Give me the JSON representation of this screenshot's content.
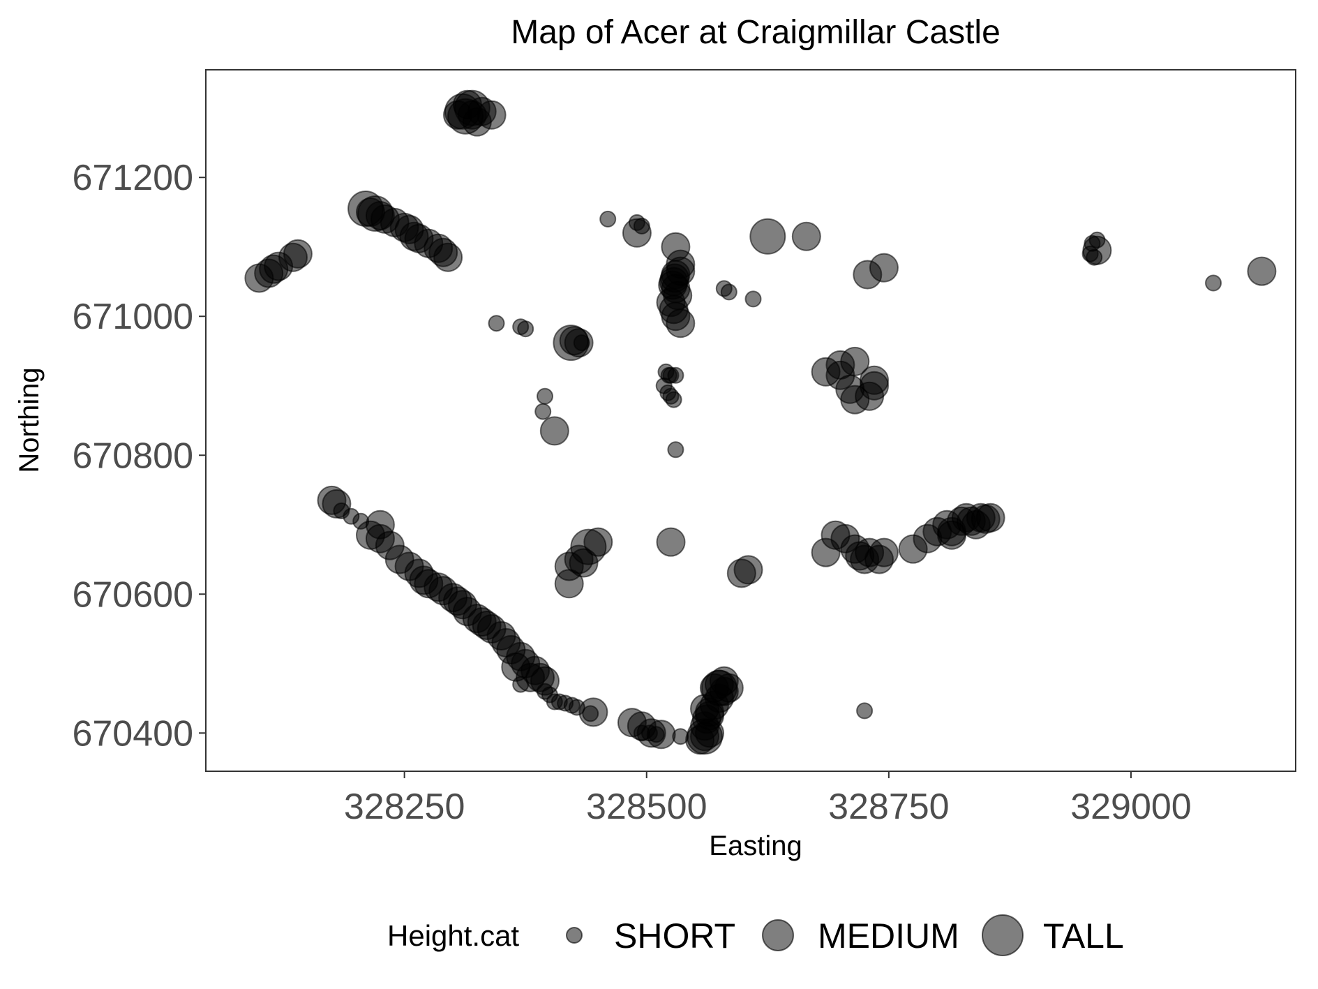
{
  "chart_data": {
    "type": "scatter",
    "title": "Map of Acer at Craigmillar Castle",
    "xlabel": "Easting",
    "ylabel": "Northing",
    "xlim": [
      328045,
      329170
    ],
    "ylim": [
      670345,
      671355
    ],
    "xticks": [
      328250,
      328500,
      328750,
      329000
    ],
    "yticks": [
      670400,
      670600,
      670800,
      671000,
      671200
    ],
    "grid": false,
    "legend": {
      "title": "Height.cat",
      "position": "bottom",
      "entries": [
        "SHORT",
        "MEDIUM",
        "TALL"
      ]
    },
    "colors": {
      "point_fill": "#000000",
      "point_opacity": 0.5,
      "panel_border": "#333333"
    },
    "sizes": {
      "SHORT": 11,
      "MEDIUM": 20,
      "TALL": 25
    },
    "series": [
      {
        "name": "SHORT",
        "points": [
          [
            328460,
            671140
          ],
          [
            328490,
            671135
          ],
          [
            328495,
            671130
          ],
          [
            328345,
            670990
          ],
          [
            328370,
            670985
          ],
          [
            328375,
            670982
          ],
          [
            328395,
            670885
          ],
          [
            328393,
            670863
          ],
          [
            328433,
            670962
          ],
          [
            328520,
            670920
          ],
          [
            328525,
            670915
          ],
          [
            328523,
            670915
          ],
          [
            328530,
            670915
          ],
          [
            328522,
            670890
          ],
          [
            328518,
            670900
          ],
          [
            328528,
            670880
          ],
          [
            328525,
            670885
          ],
          [
            328530,
            670808
          ],
          [
            328580,
            671040
          ],
          [
            328585,
            671035
          ],
          [
            328610,
            671025
          ],
          [
            328185,
            670720
          ],
          [
            328195,
            670712
          ],
          [
            328205,
            670705
          ],
          [
            328405,
            670445
          ],
          [
            328410,
            670445
          ],
          [
            328416,
            670443
          ],
          [
            328423,
            670440
          ],
          [
            328428,
            670437
          ],
          [
            328442,
            670428
          ],
          [
            328495,
            670400
          ],
          [
            328503,
            670400
          ],
          [
            328510,
            670398
          ],
          [
            328535,
            670395
          ],
          [
            328725,
            670432
          ],
          [
            328965,
            671110
          ],
          [
            328960,
            671105
          ],
          [
            328958,
            671090
          ],
          [
            328962,
            671085
          ],
          [
            329085,
            671048
          ],
          [
            328400,
            670455
          ],
          [
            328395,
            670460
          ],
          [
            328370,
            670470
          ]
        ]
      },
      {
        "name": "MEDIUM",
        "points": [
          [
            328315,
            671305
          ],
          [
            328330,
            671295
          ],
          [
            328320,
            671290
          ],
          [
            328340,
            671290
          ],
          [
            328305,
            671290
          ],
          [
            328325,
            671280
          ],
          [
            328100,
            671055
          ],
          [
            328110,
            671062
          ],
          [
            328115,
            671068
          ],
          [
            328120,
            671072
          ],
          [
            328135,
            671085
          ],
          [
            328140,
            671090
          ],
          [
            328215,
            671150
          ],
          [
            328225,
            671145
          ],
          [
            328230,
            671140
          ],
          [
            328240,
            671135
          ],
          [
            328250,
            671128
          ],
          [
            328255,
            671125
          ],
          [
            328260,
            671115
          ],
          [
            328265,
            671112
          ],
          [
            328275,
            671105
          ],
          [
            328285,
            671098
          ],
          [
            328290,
            671092
          ],
          [
            328295,
            671085
          ],
          [
            328490,
            671120
          ],
          [
            328530,
            671100
          ],
          [
            328535,
            671075
          ],
          [
            328530,
            671060
          ],
          [
            328528,
            671050
          ],
          [
            328530,
            671040
          ],
          [
            328532,
            671030
          ],
          [
            328525,
            671020
          ],
          [
            328528,
            671010
          ],
          [
            328530,
            671000
          ],
          [
            328535,
            670990
          ],
          [
            328535,
            671065
          ],
          [
            328527,
            671045
          ],
          [
            328529,
            671055
          ],
          [
            328430,
            670962
          ],
          [
            328425,
            670965
          ],
          [
            328405,
            670835
          ],
          [
            328665,
            671115
          ],
          [
            328728,
            671060
          ],
          [
            328745,
            671070
          ],
          [
            328685,
            670920
          ],
          [
            328700,
            670930
          ],
          [
            328715,
            670935
          ],
          [
            328710,
            670895
          ],
          [
            328715,
            670880
          ],
          [
            328730,
            670885
          ],
          [
            328735,
            670900
          ],
          [
            328735,
            670908
          ],
          [
            328700,
            670915
          ],
          [
            328175,
            670735
          ],
          [
            328180,
            670730
          ],
          [
            328225,
            670700
          ],
          [
            328215,
            670685
          ],
          [
            328225,
            670680
          ],
          [
            328235,
            670670
          ],
          [
            328245,
            670650
          ],
          [
            328255,
            670640
          ],
          [
            328265,
            670630
          ],
          [
            328270,
            670620
          ],
          [
            328275,
            670615
          ],
          [
            328285,
            670610
          ],
          [
            328290,
            670605
          ],
          [
            328300,
            670595
          ],
          [
            328305,
            670590
          ],
          [
            328310,
            670585
          ],
          [
            328315,
            670575
          ],
          [
            328325,
            670565
          ],
          [
            328335,
            670555
          ],
          [
            328340,
            670550
          ],
          [
            328350,
            670540
          ],
          [
            328355,
            670530
          ],
          [
            328360,
            670520
          ],
          [
            328370,
            670510
          ],
          [
            328375,
            670500
          ],
          [
            328385,
            670490
          ],
          [
            328390,
            670480
          ],
          [
            328395,
            670475
          ],
          [
            328380,
            670480
          ],
          [
            328365,
            670495
          ],
          [
            328330,
            670560
          ],
          [
            328420,
            670640
          ],
          [
            328430,
            670650
          ],
          [
            328435,
            670645
          ],
          [
            328450,
            670675
          ],
          [
            328420,
            670615
          ],
          [
            328525,
            670675
          ],
          [
            328598,
            670630
          ],
          [
            328605,
            670635
          ],
          [
            328685,
            670660
          ],
          [
            328695,
            670685
          ],
          [
            328705,
            670680
          ],
          [
            328715,
            670665
          ],
          [
            328720,
            670655
          ],
          [
            328725,
            670650
          ],
          [
            328730,
            670660
          ],
          [
            328740,
            670650
          ],
          [
            328745,
            670660
          ],
          [
            328775,
            670665
          ],
          [
            328790,
            670680
          ],
          [
            328800,
            670690
          ],
          [
            328810,
            670700
          ],
          [
            328815,
            670690
          ],
          [
            328825,
            670705
          ],
          [
            328830,
            670710
          ],
          [
            328835,
            670705
          ],
          [
            328840,
            670700
          ],
          [
            328845,
            670710
          ],
          [
            328850,
            670708
          ],
          [
            328855,
            670710
          ],
          [
            328815,
            670685
          ],
          [
            328445,
            670430
          ],
          [
            328485,
            670415
          ],
          [
            328495,
            670410
          ],
          [
            328505,
            670400
          ],
          [
            328515,
            670398
          ],
          [
            328555,
            670390
          ],
          [
            328560,
            670395
          ],
          [
            328565,
            670400
          ],
          [
            328560,
            670410
          ],
          [
            328562,
            670420
          ],
          [
            328565,
            670430
          ],
          [
            328570,
            670440
          ],
          [
            328575,
            670450
          ],
          [
            328580,
            670460
          ],
          [
            328575,
            670470
          ],
          [
            328580,
            670475
          ],
          [
            328570,
            670465
          ],
          [
            328585,
            670465
          ],
          [
            328565,
            670425
          ],
          [
            328560,
            670435
          ],
          [
            328965,
            671095
          ],
          [
            329135,
            671065
          ]
        ]
      },
      {
        "name": "TALL",
        "points": [
          [
            328310,
            671295
          ],
          [
            328320,
            671300
          ],
          [
            328313,
            671288
          ],
          [
            328210,
            671155
          ],
          [
            328220,
            671148
          ],
          [
            328625,
            671115
          ],
          [
            328422,
            670962
          ],
          [
            328440,
            670668
          ],
          [
            328560,
            670395
          ],
          [
            328575,
            670465
          ]
        ]
      }
    ]
  }
}
